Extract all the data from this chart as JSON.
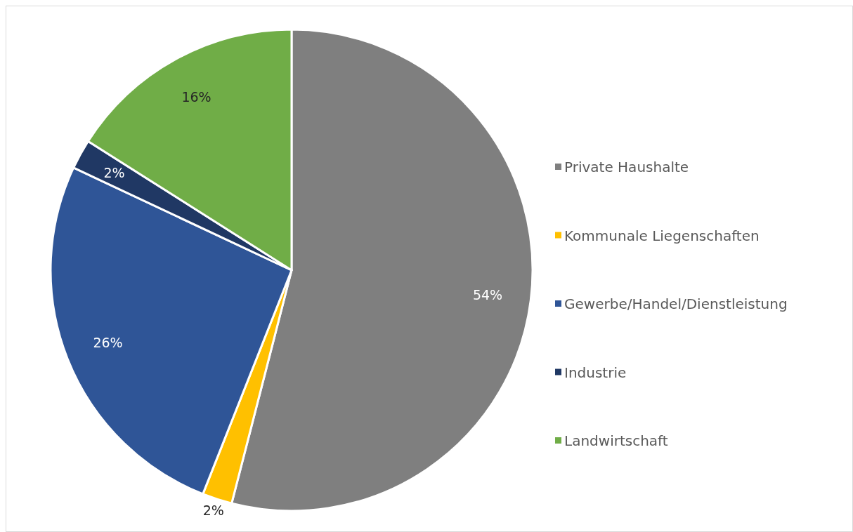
{
  "chart_data": {
    "type": "pie",
    "categories": [
      "Private Haushalte",
      "Kommunale Liegenschaften",
      "Gewerbe/Handel/Dienstleistung",
      "Industrie",
      "Landwirtschaft"
    ],
    "values": [
      54,
      2,
      26,
      2,
      16
    ],
    "colors": [
      "#7f7f7f",
      "#ffc000",
      "#2f5597",
      "#203864",
      "#70ad47"
    ],
    "value_labels": [
      "54%",
      "2%",
      "26%",
      "2%",
      "16%"
    ],
    "legend": "right"
  }
}
